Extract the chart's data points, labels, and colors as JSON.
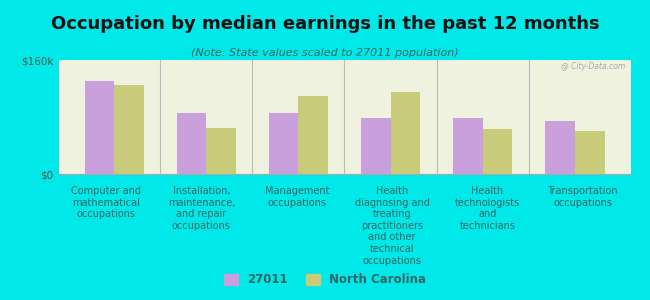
{
  "title": "Occupation by median earnings in the past 12 months",
  "subtitle": "(Note: State values scaled to 27011 population)",
  "background_color": "#00e8e8",
  "plot_bg_color": "#eef2df",
  "categories": [
    "Computer and\nmathematical\noccupations",
    "Installation,\nmaintenance,\nand repair\noccupations",
    "Management\noccupations",
    "Health\ndiagnosing and\ntreating\npractitioners\nand other\ntechnical\noccupations",
    "Health\ntechnologists\nand\ntechnicians",
    "Transportation\noccupations"
  ],
  "values_27011": [
    130000,
    85000,
    85000,
    78000,
    78000,
    75000
  ],
  "values_nc": [
    125000,
    65000,
    110000,
    115000,
    63000,
    60000
  ],
  "color_27011": "#c9a0dc",
  "color_nc": "#c8cc7a",
  "ylim": [
    0,
    160000
  ],
  "ytick_labels": [
    "$0",
    "$160k"
  ],
  "legend_27011": "27011",
  "legend_nc": "North Carolina",
  "bar_width": 0.32,
  "title_fontsize": 13,
  "subtitle_fontsize": 8,
  "xlabel_fontsize": 7,
  "xlabel_color": "#336666",
  "ytick_color": "#555555",
  "watermark": "@ City-Data.com"
}
